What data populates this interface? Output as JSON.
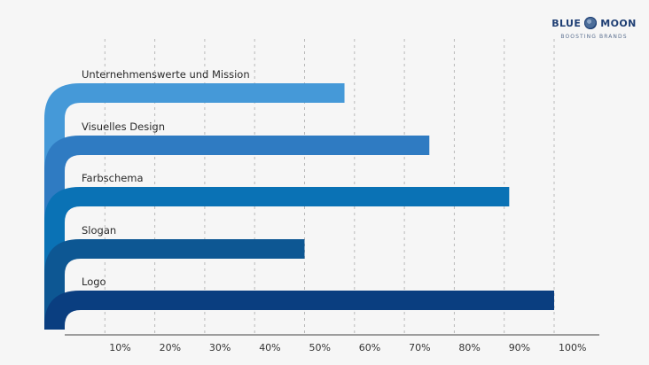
{
  "chart_data": {
    "type": "bar",
    "orientation": "horizontal",
    "categories": [
      "Unternehmenswerte und Mission",
      "Visuelles Design",
      "Farbschema",
      "Slogan",
      "Logo"
    ],
    "values": [
      58,
      75,
      91,
      50,
      100
    ],
    "xlim": [
      0,
      100
    ],
    "ticks": [
      10,
      20,
      30,
      40,
      50,
      60,
      70,
      80,
      90,
      100
    ],
    "tick_labels": [
      "10%",
      "20%",
      "30%",
      "40%",
      "50%",
      "60%",
      "70%",
      "80%",
      "90%",
      "100%"
    ],
    "grid": true,
    "colors": [
      "#4599d8",
      "#2f7bc2",
      "#0a72b5",
      "#0d5793",
      "#0a3e80"
    ]
  },
  "brand": {
    "name_left": "BLUE",
    "name_right": "MOON",
    "tagline": "BOOSTING BRANDS",
    "color": "#1f3f74"
  }
}
